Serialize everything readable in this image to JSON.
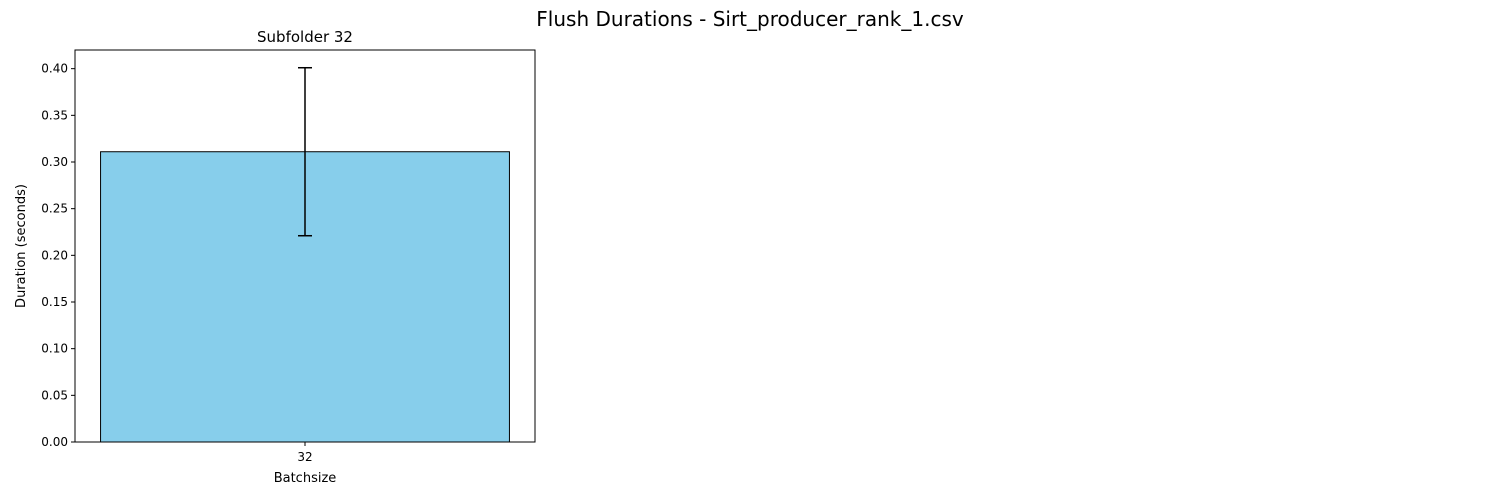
{
  "figure": {
    "suptitle": "Flush Durations - Sirt_producer_rank_1.csv"
  },
  "chart_data": {
    "type": "bar",
    "title": "Subfolder 32",
    "xlabel": "Batchsize",
    "ylabel": "Duration (seconds)",
    "categories": [
      "32"
    ],
    "values": [
      0.311
    ],
    "error": [
      0.09
    ],
    "ylim": [
      0,
      0.42
    ],
    "yticks": [
      "0.00",
      "0.05",
      "0.10",
      "0.15",
      "0.20",
      "0.25",
      "0.30",
      "0.35",
      "0.40"
    ],
    "grid": false,
    "bar_color": "#87ceeb",
    "edge_color": "#000000",
    "error_color": "#000000"
  }
}
